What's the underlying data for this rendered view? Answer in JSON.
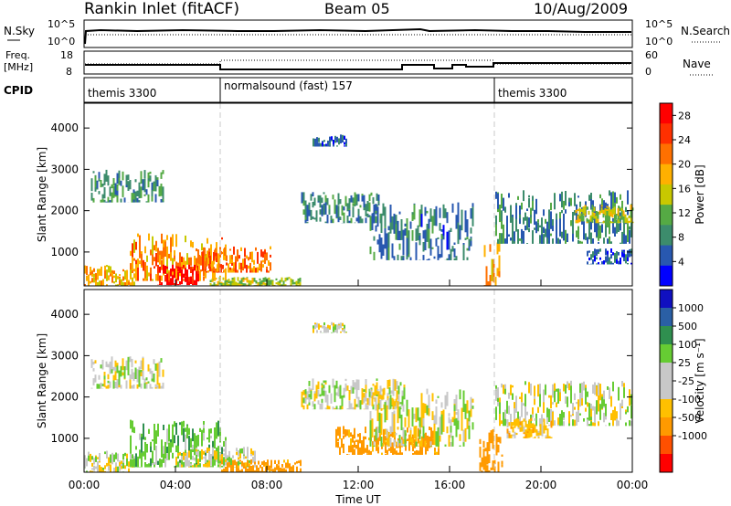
{
  "header": {
    "title": "Rankin Inlet (fitACF)",
    "beam": "Beam 05",
    "date": "10/Aug/2009"
  },
  "top_panels": {
    "nsky_label": "N.Sky",
    "nsearch_label": "N.Search",
    "noise_tick_hi": "10^5",
    "noise_tick_lo": "10^0",
    "freq_label_1": "Freq.",
    "freq_label_2": "[MHz]",
    "freq_ticks": [
      "18",
      "8"
    ],
    "nave_label": "Nave",
    "nave_ticks": [
      "60",
      "0"
    ],
    "cpid_label": "CPID",
    "cpid_segments": [
      {
        "label": "themis 3300",
        "start_h": 0,
        "end_h": 6
      },
      {
        "label": "normalsound (fast) 157",
        "start_h": 6,
        "end_h": 18
      },
      {
        "label": "themis 3300",
        "start_h": 18,
        "end_h": 24
      }
    ]
  },
  "colors": {
    "power_scale": [
      "#0000ff",
      "#2858b0",
      "#3c8c6c",
      "#55aa44",
      "#c8c800",
      "#ffb000",
      "#ff7000",
      "#ff3000",
      "#ff0000"
    ],
    "velocity_scale": [
      "#ff0000",
      "#ff5000",
      "#ff9a00",
      "#ffc000",
      "#c8c8c8",
      "#c8c8c8",
      "#66cc33",
      "#2f8f4f",
      "#2a5fa5",
      "#1010c0"
    ]
  },
  "chart_data": [
    {
      "type": "heatmap",
      "panel": "power",
      "xlabel": "",
      "ylabel": "Slant Range [km]",
      "x_range_hours": [
        0,
        24
      ],
      "ylim": [
        180,
        4600
      ],
      "y_ticks": [
        1000,
        2000,
        3000,
        4000
      ],
      "colorbar": {
        "label": "Power [dB]",
        "tick_labels": [
          "28",
          "24",
          "20",
          "16",
          "12",
          "8",
          "4"
        ],
        "range": [
          0,
          30
        ]
      },
      "vertical_markers_h": [
        6,
        18
      ],
      "regions": [
        {
          "x0": 0.0,
          "x1": 2.2,
          "y0": 180,
          "y1": 700,
          "value": 18
        },
        {
          "x0": 0.3,
          "x1": 3.5,
          "y0": 2200,
          "y1": 3000,
          "value": 9
        },
        {
          "x0": 2.0,
          "x1": 6.2,
          "y0": 300,
          "y1": 1450,
          "value": 20
        },
        {
          "x0": 3.2,
          "x1": 5.0,
          "y0": 200,
          "y1": 700,
          "value": 29
        },
        {
          "x0": 5.0,
          "x1": 8.2,
          "y0": 500,
          "y1": 1150,
          "value": 22
        },
        {
          "x0": 5.5,
          "x1": 9.5,
          "y0": 180,
          "y1": 400,
          "value": 14
        },
        {
          "x0": 9.5,
          "x1": 13.0,
          "y0": 1700,
          "y1": 2450,
          "value": 8
        },
        {
          "x0": 10.0,
          "x1": 11.5,
          "y0": 3550,
          "y1": 3850,
          "value": 6
        },
        {
          "x0": 12.5,
          "x1": 17.0,
          "y0": 800,
          "y1": 2200,
          "value": 7
        },
        {
          "x0": 17.5,
          "x1": 18.2,
          "y0": 180,
          "y1": 1300,
          "value": 20
        },
        {
          "x0": 18.0,
          "x1": 24.0,
          "y0": 1200,
          "y1": 2500,
          "value": 8
        },
        {
          "x0": 21.5,
          "x1": 24.0,
          "y0": 1700,
          "y1": 2150,
          "value": 15
        },
        {
          "x0": 22.0,
          "x1": 24.0,
          "y0": 700,
          "y1": 1100,
          "value": 6
        }
      ]
    },
    {
      "type": "heatmap",
      "panel": "velocity",
      "xlabel": "Time UT",
      "ylabel": "Slant Range [km]",
      "x_ticks": [
        "00:00",
        "04:00",
        "08:00",
        "12:00",
        "16:00",
        "20:00",
        "00:00"
      ],
      "x_range_hours": [
        0,
        24
      ],
      "ylim": [
        180,
        4600
      ],
      "y_ticks": [
        1000,
        2000,
        3000,
        4000
      ],
      "colorbar": {
        "label": "Velocity [m s⁻¹]",
        "tick_labels": [
          "1000",
          "500",
          "100",
          "25",
          "-25",
          "-100",
          "-500",
          "-1000"
        ],
        "range": [
          -1000,
          1000
        ]
      },
      "vertical_markers_h": [
        6,
        18
      ],
      "regions": [
        {
          "x0": 0.0,
          "x1": 2.2,
          "y0": 180,
          "y1": 700,
          "value": 0
        },
        {
          "x0": 0.3,
          "x1": 3.5,
          "y0": 2200,
          "y1": 3000,
          "value": 0
        },
        {
          "x0": 2.0,
          "x1": 6.2,
          "y0": 300,
          "y1": 1450,
          "value": 60
        },
        {
          "x0": 4.0,
          "x1": 7.5,
          "y0": 300,
          "y1": 800,
          "value": 0
        },
        {
          "x0": 6.0,
          "x1": 9.5,
          "y0": 180,
          "y1": 500,
          "value": -150
        },
        {
          "x0": 10.0,
          "x1": 11.5,
          "y0": 3550,
          "y1": 3850,
          "value": 0
        },
        {
          "x0": 9.5,
          "x1": 14.0,
          "y0": 1700,
          "y1": 2450,
          "value": 0
        },
        {
          "x0": 11.0,
          "x1": 15.5,
          "y0": 600,
          "y1": 1300,
          "value": -150
        },
        {
          "x0": 12.5,
          "x1": 17.0,
          "y0": 800,
          "y1": 2200,
          "value": 0
        },
        {
          "x0": 17.3,
          "x1": 18.3,
          "y0": 180,
          "y1": 1300,
          "value": -250
        },
        {
          "x0": 18.0,
          "x1": 24.0,
          "y0": 1300,
          "y1": 2400,
          "value": 0
        },
        {
          "x0": 18.5,
          "x1": 20.5,
          "y0": 1000,
          "y1": 1500,
          "value": -60
        }
      ]
    }
  ]
}
